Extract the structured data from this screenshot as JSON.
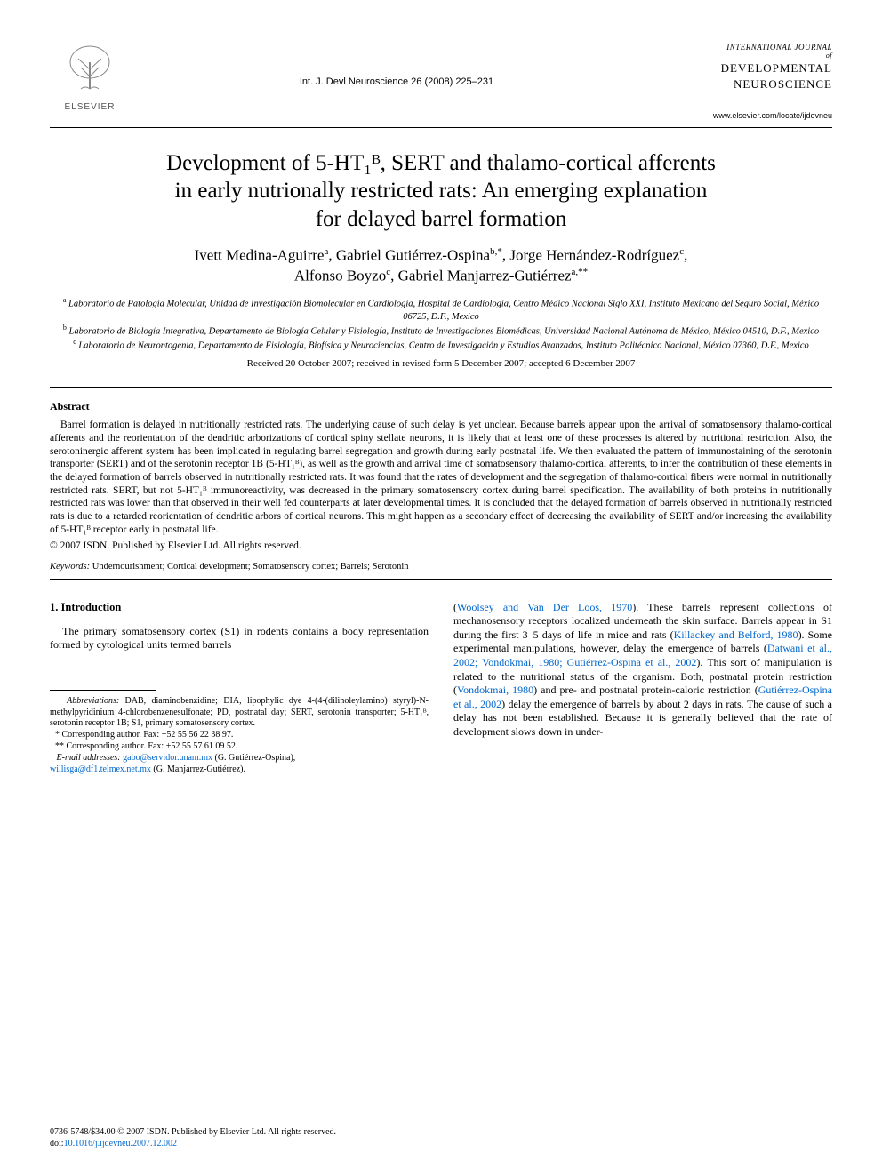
{
  "header": {
    "elsevier_label": "ELSEVIER",
    "citation": "Int. J. Devl Neuroscience 26 (2008) 225–231",
    "journal_small_top": "INTERNATIONAL JOURNAL",
    "journal_small_of": "of",
    "journal_name_line1": "DEVELOPMENTAL",
    "journal_name_line2": "NEUROSCIENCE",
    "journal_url": "www.elsevier.com/locate/ijdevneu"
  },
  "title_lines": [
    "Development of 5-HT₁ᴮ, SERT and thalamo-cortical afferents",
    "in early nutrionally restricted rats: An emerging explanation",
    "for delayed barrel formation"
  ],
  "authors_html": "Ivett Medina-Aguirre<sup>a</sup>, Gabriel Gutiérrez-Ospina<sup>b,*</sup>, Jorge Hernández-Rodríguez<sup>c</sup>,<br>Alfonso Boyzo<sup>c</sup>, Gabriel Manjarrez-Gutiérrez<sup>a,**</sup>",
  "affiliations": {
    "a": "Laboratorio de Patología Molecular, Unidad de Investigación Biomolecular en Cardiología, Hospital de Cardiología, Centro Médico Nacional Siglo XXI, Instituto Mexicano del Seguro Social, México 06725, D.F., Mexico",
    "b": "Laboratorio de Biología Integrativa, Departamento de Biología Celular y Fisiología, Instituto de Investigaciones Biomédicas, Universidad Nacional Autónoma de México, México 04510, D.F., Mexico",
    "c": "Laboratorio de Neurontogenia, Departamento de Fisiología, Biofísica y Neurociencias, Centro de Investigación y Estudios Avanzados, Instituto Politécnico Nacional, México 07360, D.F., Mexico"
  },
  "received": "Received 20 October 2007; received in revised form 5 December 2007; accepted 6 December 2007",
  "abstract": {
    "heading": "Abstract",
    "body": "Barrel formation is delayed in nutritionally restricted rats. The underlying cause of such delay is yet unclear. Because barrels appear upon the arrival of somatosensory thalamo-cortical afferents and the reorientation of the dendritic arborizations of cortical spiny stellate neurons, it is likely that at least one of these processes is altered by nutritional restriction. Also, the serotoninergic afferent system has been implicated in regulating barrel segregation and growth during early postnatal life. We then evaluated the pattern of immunostaining of the serotonin transporter (SERT) and of the serotonin receptor 1B (5-HT₁ᴮ), as well as the growth and arrival time of somatosensory thalamo-cortical afferents, to infer the contribution of these elements in the delayed formation of barrels observed in nutritionally restricted rats. It was found that the rates of development and the segregation of thalamo-cortical fibers were normal in nutritionally restricted rats. SERT, but not 5-HT₁ᴮ immunoreactivity, was decreased in the primary somatosensory cortex during barrel specification. The availability of both proteins in nutritionally restricted rats was lower than that observed in their well fed counterparts at later developmental times. It is concluded that the delayed formation of barrels observed in nutritionally restricted rats is due to a retarded reorientation of dendritic arbors of cortical neurons. This might happen as a secondary effect of decreasing the availability of SERT and/or increasing the availability of 5-HT₁ᴮ receptor early in postnatal life.",
    "copyright": "© 2007 ISDN. Published by Elsevier Ltd. All rights reserved."
  },
  "keywords": {
    "label": "Keywords:",
    "list": "Undernourishment; Cortical development; Somatosensory cortex; Barrels; Serotonin"
  },
  "section1": {
    "heading": "1. Introduction",
    "p1": "The primary somatosensory cortex (S1) in rodents contains a body representation formed by cytological units termed barrels",
    "p2_pre": "(",
    "p2_ref1": "Woolsey and Van Der Loos, 1970",
    "p2_mid1": "). These barrels represent collections of mechanosensory receptors localized underneath the skin surface. Barrels appear in S1 during the first 3–5 days of life in mice and rats (",
    "p2_ref2": "Killackey and Belford, 1980",
    "p2_mid2": "). Some experimental manipulations, however, delay the emergence of barrels (",
    "p2_ref3": "Datwani et al., 2002; Vondokmai, 1980; Gutiérrez-Ospina et al., 2002",
    "p2_mid3": "). This sort of manipulation is related to the nutritional status of the organism. Both, postnatal protein restriction (",
    "p2_ref4": "Vondokmai, 1980",
    "p2_mid4": ") and pre- and postnatal protein-caloric restriction (",
    "p2_ref5": "Gutiérrez-Ospina et al., 2002",
    "p2_mid5": ") delay the emergence of barrels by about 2 days in rats. The cause of such a delay has not been established. Because it is generally believed that the rate of development slows down in under-"
  },
  "footnotes": {
    "abbrev_label": "Abbreviations:",
    "abbrev_text": "DAB, diaminobenzidine; DIA, lipophylic dye 4-(4-(dilinoleylamino) styryl)-N-methylpyridinium 4-chlorobenzenesulfonate; PD, postnatal day; SERT, serotonin transporter; 5-HT₁ᴮ, serotonin receptor 1B; S1, primary somatosensory cortex.",
    "corr1": "* Corresponding author. Fax: +52 55 56 22 38 97.",
    "corr2": "** Corresponding author. Fax: +52 55 57 61 09 52.",
    "email_label": "E-mail addresses:",
    "email1": "gabo@servidor.unam.mx",
    "email1_who": "(G. Gutiérrez-Ospina),",
    "email2": "willisga@df1.telmex.net.mx",
    "email2_who": "(G. Manjarrez-Gutiérrez)."
  },
  "footer": {
    "line1": "0736-5748/$34.00 © 2007 ISDN. Published by Elsevier Ltd. All rights reserved.",
    "doi_label": "doi:",
    "doi": "10.1016/j.ijdevneu.2007.12.002"
  },
  "colors": {
    "link": "#0066cc",
    "text": "#000000",
    "rule": "#000000"
  }
}
